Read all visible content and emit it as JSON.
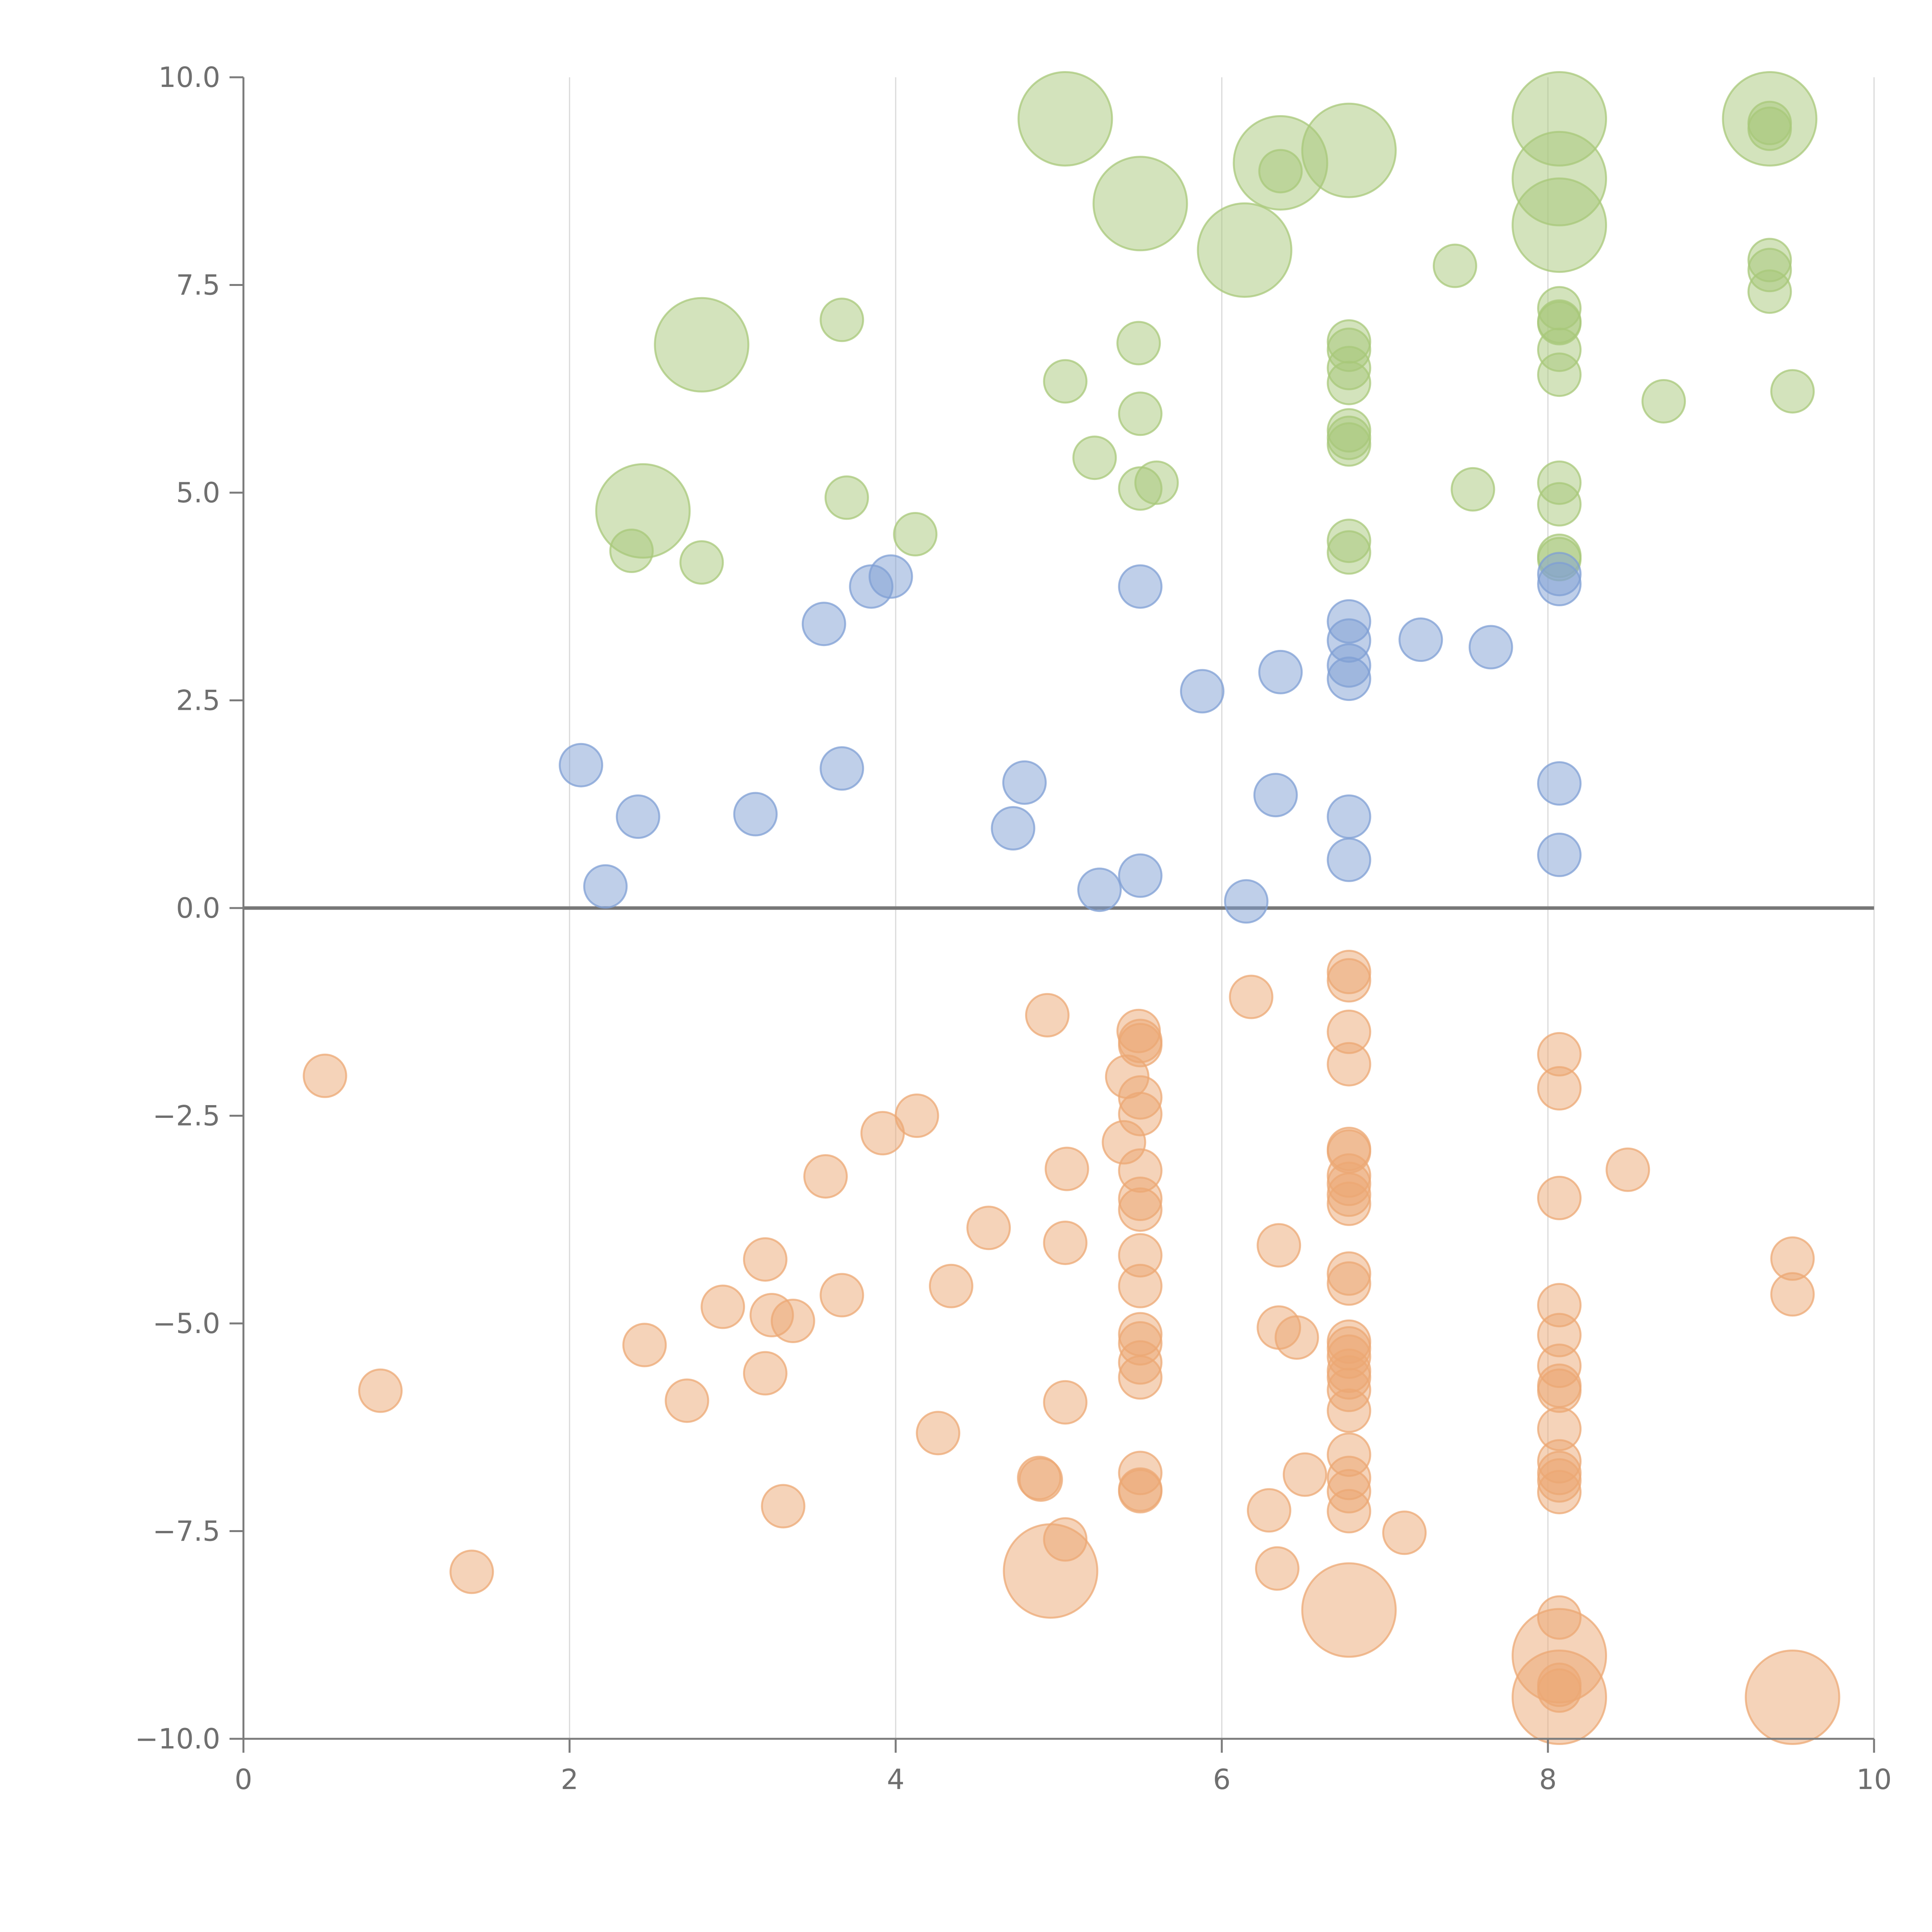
{
  "chart_data": {
    "type": "scatter",
    "title": "",
    "xlabel": "",
    "ylabel": "",
    "xlim": [
      0,
      10
    ],
    "ylim": [
      -10,
      10
    ],
    "x_ticks": [
      0,
      2,
      4,
      6,
      8,
      10
    ],
    "y_ticks": [
      10,
      7.5,
      5,
      2.5,
      0,
      -2.5,
      -5,
      -7.5,
      -10
    ],
    "x_tick_labels": [
      "0",
      "2",
      "4",
      "6",
      "8",
      "10"
    ],
    "y_tick_labels": [
      "10.0",
      "7.5",
      "5.0",
      "2.5",
      "0.0",
      "−2.5",
      "−5.0",
      "−7.5",
      "−10.0"
    ],
    "grid": "vertical",
    "reference_line_y": 0,
    "size_scale": "larger bubble = larger size value (small = 1, large = 2.2)",
    "series": [
      {
        "color": "#a8c879",
        "points": [
          [
            5.04,
            9.5,
            2.2
          ],
          [
            5.5,
            8.48,
            2.2
          ],
          [
            6.14,
            7.92,
            2.2
          ],
          [
            6.36,
            8.97,
            2.2
          ],
          [
            6.78,
            9.12,
            2.2
          ],
          [
            8.07,
            9.5,
            2.2
          ],
          [
            8.07,
            8.78,
            2.2
          ],
          [
            8.07,
            8.22,
            2.2
          ],
          [
            9.36,
            9.5,
            2.2
          ],
          [
            2.81,
            6.78,
            2.2
          ],
          [
            2.45,
            4.78,
            2.2
          ],
          [
            9.36,
            9.45,
            1
          ],
          [
            9.36,
            9.38,
            1
          ],
          [
            6.36,
            8.87,
            1
          ],
          [
            7.43,
            7.73,
            1
          ],
          [
            3.67,
            7.08,
            1
          ],
          [
            5.49,
            6.8,
            1
          ],
          [
            5.04,
            6.34,
            1
          ],
          [
            5.5,
            5.95,
            1
          ],
          [
            5.22,
            5.42,
            1
          ],
          [
            5.5,
            5.05,
            1
          ],
          [
            5.6,
            5.12,
            1
          ],
          [
            3.7,
            4.94,
            1
          ],
          [
            4.12,
            4.5,
            1
          ],
          [
            2.38,
            4.3,
            1
          ],
          [
            2.81,
            4.16,
            1
          ],
          [
            6.78,
            6.82,
            1
          ],
          [
            6.78,
            6.72,
            1
          ],
          [
            6.78,
            6.5,
            1
          ],
          [
            6.78,
            6.32,
            1
          ],
          [
            6.78,
            5.75,
            1
          ],
          [
            6.78,
            5.66,
            1
          ],
          [
            6.78,
            5.58,
            1
          ],
          [
            6.78,
            4.42,
            1
          ],
          [
            6.78,
            4.28,
            1
          ],
          [
            7.54,
            5.04,
            1
          ],
          [
            8.07,
            7.22,
            1
          ],
          [
            8.07,
            7.06,
            1
          ],
          [
            8.07,
            7.04,
            1
          ],
          [
            8.07,
            6.72,
            1
          ],
          [
            8.07,
            6.42,
            1
          ],
          [
            8.07,
            5.12,
            1
          ],
          [
            8.07,
            4.86,
            1
          ],
          [
            8.07,
            4.24,
            1
          ],
          [
            8.07,
            4.2,
            1
          ],
          [
            8.71,
            6.1,
            1
          ],
          [
            9.36,
            7.8,
            1
          ],
          [
            9.36,
            7.68,
            1
          ],
          [
            9.36,
            7.42,
            1
          ],
          [
            9.5,
            6.22,
            1
          ]
        ]
      },
      {
        "color": "#7f9fd4",
        "points": [
          [
            3.56,
            3.42,
            1
          ],
          [
            3.85,
            3.87,
            1
          ],
          [
            3.97,
            3.99,
            1
          ],
          [
            5.5,
            3.87,
            1
          ],
          [
            6.36,
            2.84,
            1
          ],
          [
            5.88,
            2.61,
            1
          ],
          [
            6.78,
            3.45,
            1
          ],
          [
            6.78,
            3.22,
            1
          ],
          [
            6.78,
            2.92,
            1
          ],
          [
            6.78,
            2.76,
            1
          ],
          [
            7.22,
            3.23,
            1
          ],
          [
            7.65,
            3.14,
            1
          ],
          [
            8.07,
            4.02,
            1
          ],
          [
            8.07,
            3.9,
            1
          ],
          [
            2.07,
            1.72,
            1
          ],
          [
            2.42,
            1.1,
            1
          ],
          [
            3.14,
            1.13,
            1
          ],
          [
            3.67,
            1.68,
            1
          ],
          [
            2.22,
            0.26,
            1
          ],
          [
            4.72,
            0.96,
            1
          ],
          [
            4.79,
            1.51,
            1
          ],
          [
            5.25,
            0.22,
            1
          ],
          [
            5.5,
            0.39,
            1
          ],
          [
            6.15,
            0.08,
            1
          ],
          [
            6.33,
            1.36,
            1
          ],
          [
            6.78,
            1.1,
            1
          ],
          [
            6.78,
            0.58,
            1
          ],
          [
            8.07,
            1.5,
            1
          ],
          [
            8.07,
            0.64,
            1
          ]
        ]
      },
      {
        "color": "#eca874",
        "points": [
          [
            4.95,
            -7.98,
            2.2
          ],
          [
            6.78,
            -8.45,
            2.2
          ],
          [
            8.07,
            -9.0,
            2.2
          ],
          [
            8.07,
            -9.5,
            2.2
          ],
          [
            9.5,
            -9.5,
            2.2
          ],
          [
            0.5,
            -2.02,
            1
          ],
          [
            0.84,
            -5.81,
            1
          ],
          [
            1.4,
            -7.99,
            1
          ],
          [
            2.46,
            -5.26,
            1
          ],
          [
            2.72,
            -5.93,
            1
          ],
          [
            2.94,
            -4.8,
            1
          ],
          [
            3.2,
            -4.23,
            1
          ],
          [
            3.2,
            -5.6,
            1
          ],
          [
            3.24,
            -4.9,
            1
          ],
          [
            3.37,
            -4.97,
            1
          ],
          [
            3.31,
            -7.2,
            1
          ],
          [
            3.57,
            -3.23,
            1
          ],
          [
            3.67,
            -4.66,
            1
          ],
          [
            3.92,
            -2.71,
            1
          ],
          [
            4.13,
            -2.5,
            1
          ],
          [
            4.26,
            -6.32,
            1
          ],
          [
            4.34,
            -4.55,
            1
          ],
          [
            4.57,
            -3.85,
            1
          ],
          [
            4.88,
            -6.86,
            1
          ],
          [
            4.89,
            -6.88,
            1
          ],
          [
            4.93,
            -1.29,
            1
          ],
          [
            5.04,
            -4.03,
            1
          ],
          [
            5.04,
            -5.95,
            1
          ],
          [
            5.05,
            -3.14,
            1
          ],
          [
            5.04,
            -7.6,
            1
          ],
          [
            5.4,
            -2.82,
            1
          ],
          [
            5.42,
            -2.03,
            1
          ],
          [
            5.49,
            -1.48,
            1
          ],
          [
            5.5,
            -1.6,
            1
          ],
          [
            5.5,
            -1.65,
            1
          ],
          [
            5.5,
            -2.28,
            1
          ],
          [
            5.5,
            -2.48,
            1
          ],
          [
            5.5,
            -3.16,
            1
          ],
          [
            5.5,
            -3.5,
            1
          ],
          [
            5.5,
            -3.63,
            1
          ],
          [
            5.5,
            -4.18,
            1
          ],
          [
            5.5,
            -4.55,
            1
          ],
          [
            5.5,
            -5.13,
            1
          ],
          [
            5.5,
            -5.24,
            1
          ],
          [
            5.5,
            -5.47,
            1
          ],
          [
            5.5,
            -5.65,
            1
          ],
          [
            5.5,
            -6.8,
            1
          ],
          [
            5.5,
            -7.0,
            1
          ],
          [
            5.5,
            -7.02,
            1
          ],
          [
            6.18,
            -1.07,
            1
          ],
          [
            6.35,
            -4.06,
            1
          ],
          [
            6.35,
            -5.05,
            1
          ],
          [
            6.46,
            -5.17,
            1
          ],
          [
            6.51,
            -6.82,
            1
          ],
          [
            6.34,
            -7.95,
            1
          ],
          [
            6.29,
            -7.25,
            1
          ],
          [
            6.78,
            -0.77,
            1
          ],
          [
            6.78,
            -0.87,
            1
          ],
          [
            6.78,
            -1.49,
            1
          ],
          [
            6.78,
            -1.88,
            1
          ],
          [
            6.78,
            -2.9,
            1
          ],
          [
            6.78,
            -2.93,
            1
          ],
          [
            6.78,
            -3.22,
            1
          ],
          [
            6.78,
            -3.32,
            1
          ],
          [
            6.78,
            -3.45,
            1
          ],
          [
            6.78,
            -3.56,
            1
          ],
          [
            6.78,
            -4.4,
            1
          ],
          [
            6.78,
            -4.52,
            1
          ],
          [
            6.78,
            -5.22,
            1
          ],
          [
            6.78,
            -5.3,
            1
          ],
          [
            6.78,
            -5.4,
            1
          ],
          [
            6.78,
            -5.57,
            1
          ],
          [
            6.78,
            -5.65,
            1
          ],
          [
            6.78,
            -5.8,
            1
          ],
          [
            6.78,
            -6.05,
            1
          ],
          [
            6.78,
            -6.58,
            1
          ],
          [
            6.78,
            -6.86,
            1
          ],
          [
            6.78,
            -7.02,
            1
          ],
          [
            6.78,
            -7.26,
            1
          ],
          [
            7.12,
            -7.52,
            1
          ],
          [
            8.07,
            -1.76,
            1
          ],
          [
            8.07,
            -2.17,
            1
          ],
          [
            8.07,
            -3.49,
            1
          ],
          [
            8.07,
            -4.78,
            1
          ],
          [
            8.07,
            -5.14,
            1
          ],
          [
            8.07,
            -5.51,
            1
          ],
          [
            8.07,
            -5.75,
            1
          ],
          [
            8.07,
            -5.81,
            1
          ],
          [
            8.07,
            -6.27,
            1
          ],
          [
            8.07,
            -6.66,
            1
          ],
          [
            8.07,
            -6.8,
            1
          ],
          [
            8.07,
            -6.89,
            1
          ],
          [
            8.07,
            -7.03,
            1
          ],
          [
            8.07,
            -8.54,
            1
          ],
          [
            8.07,
            -9.35,
            1
          ],
          [
            8.07,
            -9.42,
            1
          ],
          [
            8.49,
            -3.15,
            1
          ],
          [
            9.5,
            -4.22,
            1
          ],
          [
            9.5,
            -4.65,
            1
          ]
        ]
      }
    ]
  }
}
